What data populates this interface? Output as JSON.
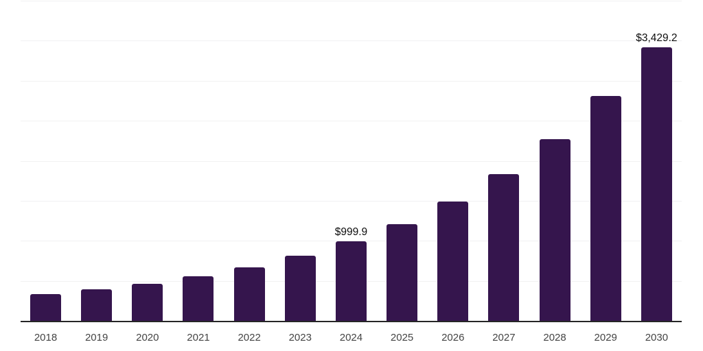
{
  "chart_data": {
    "type": "bar",
    "title": "",
    "xlabel": "",
    "ylabel": "",
    "categories": [
      "2018",
      "2019",
      "2020",
      "2021",
      "2022",
      "2023",
      "2024",
      "2025",
      "2026",
      "2027",
      "2028",
      "2029",
      "2030"
    ],
    "values": [
      345,
      403,
      470,
      566,
      678,
      823,
      999.9,
      1218,
      1499,
      1838,
      2280,
      2820,
      3429.2
    ],
    "point_labels": [
      "",
      "",
      "",
      "",
      "",
      "",
      "$999.9",
      "",
      "",
      "",
      "",
      "",
      "$3,429.2"
    ],
    "ylim": [
      0,
      4000
    ],
    "gridline_step": 500,
    "grid": true,
    "legend_position": "none",
    "colors": {
      "bar": "#35154d",
      "grid": "#f1f1f2",
      "axis": "#262626",
      "tick_label": "#444444",
      "data_label": "#0d0d0d",
      "background": "#ffffff"
    }
  }
}
